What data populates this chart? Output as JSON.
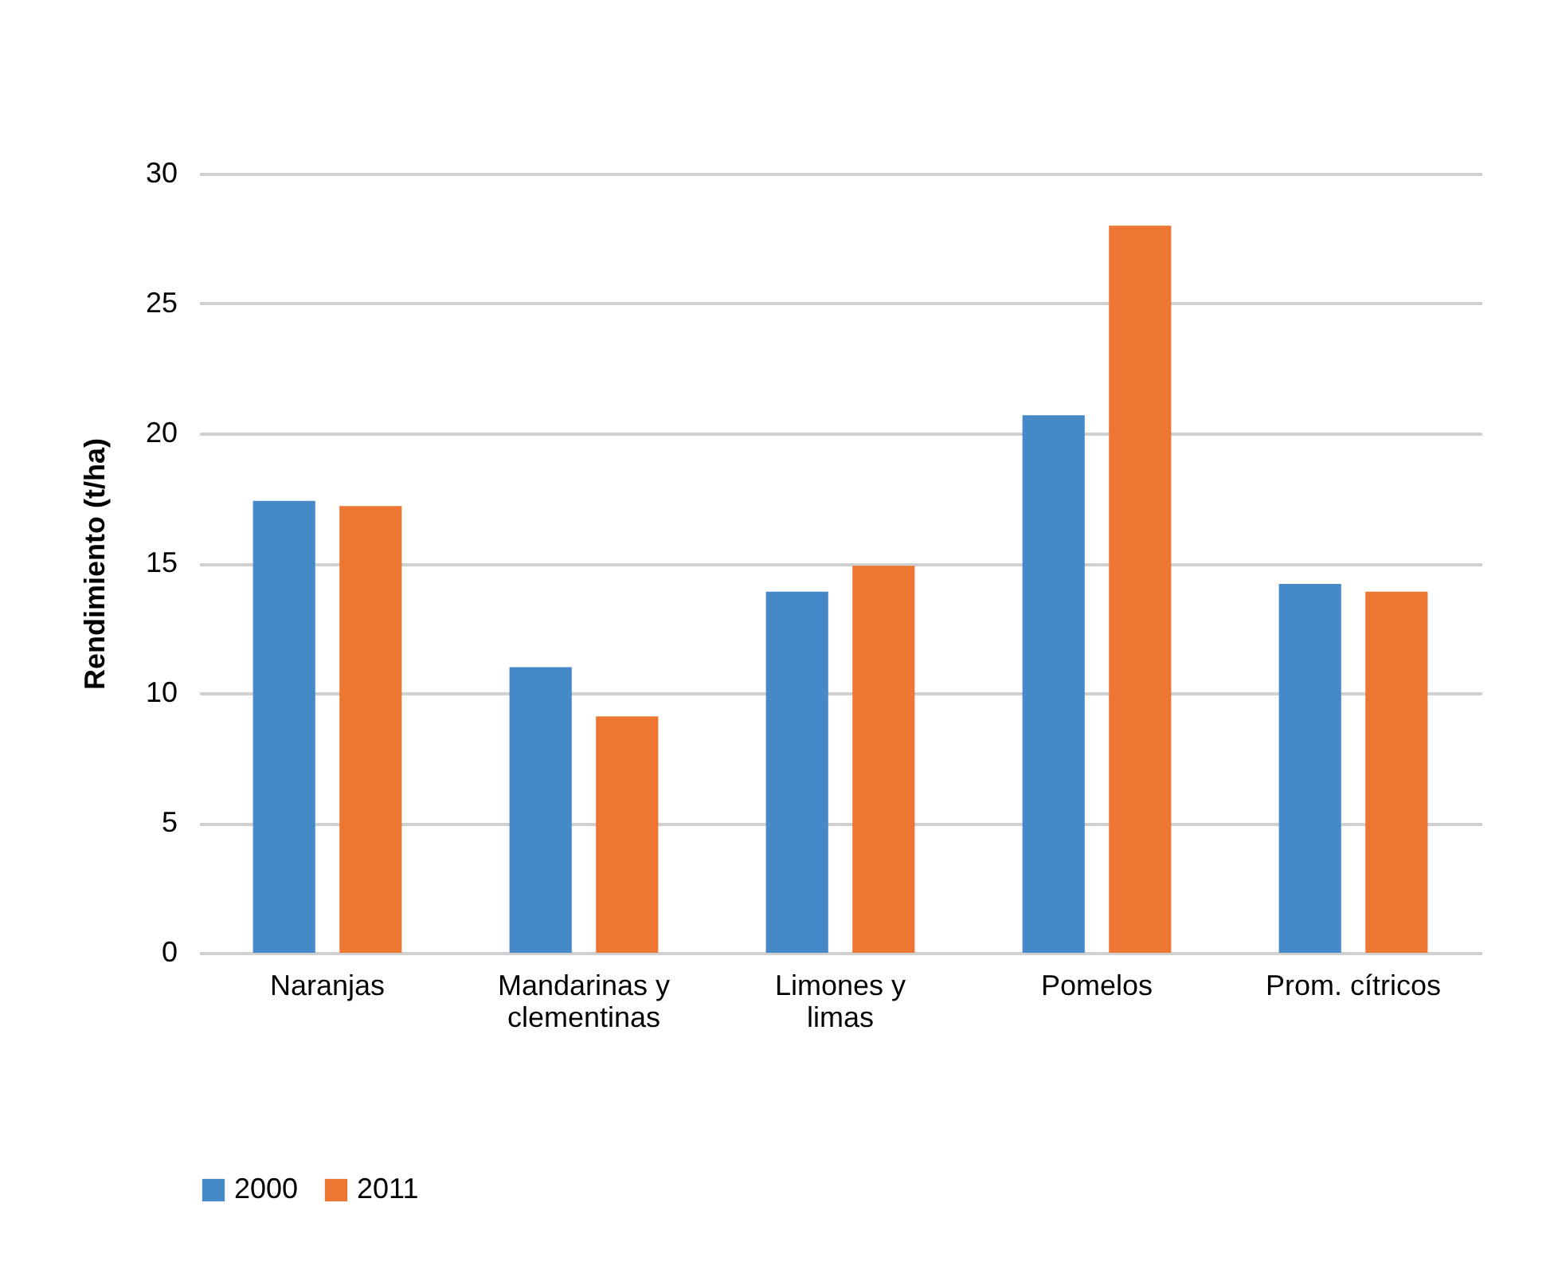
{
  "chart_data": {
    "type": "bar",
    "ylabel": "Rendimiento (t/ha)",
    "categories": [
      "Naranjas",
      "Mandarinas y clementinas",
      "Limones y limas",
      "Pomelos",
      "Prom. cítricos"
    ],
    "series": [
      {
        "name": "2000",
        "color": "#4589c9",
        "values": [
          17.4,
          11.0,
          13.9,
          20.7,
          14.2
        ]
      },
      {
        "name": "2011",
        "color": "#ed7632",
        "values": [
          17.2,
          9.1,
          14.9,
          28.0,
          13.9
        ]
      }
    ],
    "ylim": [
      0,
      30
    ],
    "yticks": [
      0,
      5,
      10,
      15,
      20,
      25,
      30
    ],
    "grid": "y",
    "legend": "bottom"
  }
}
